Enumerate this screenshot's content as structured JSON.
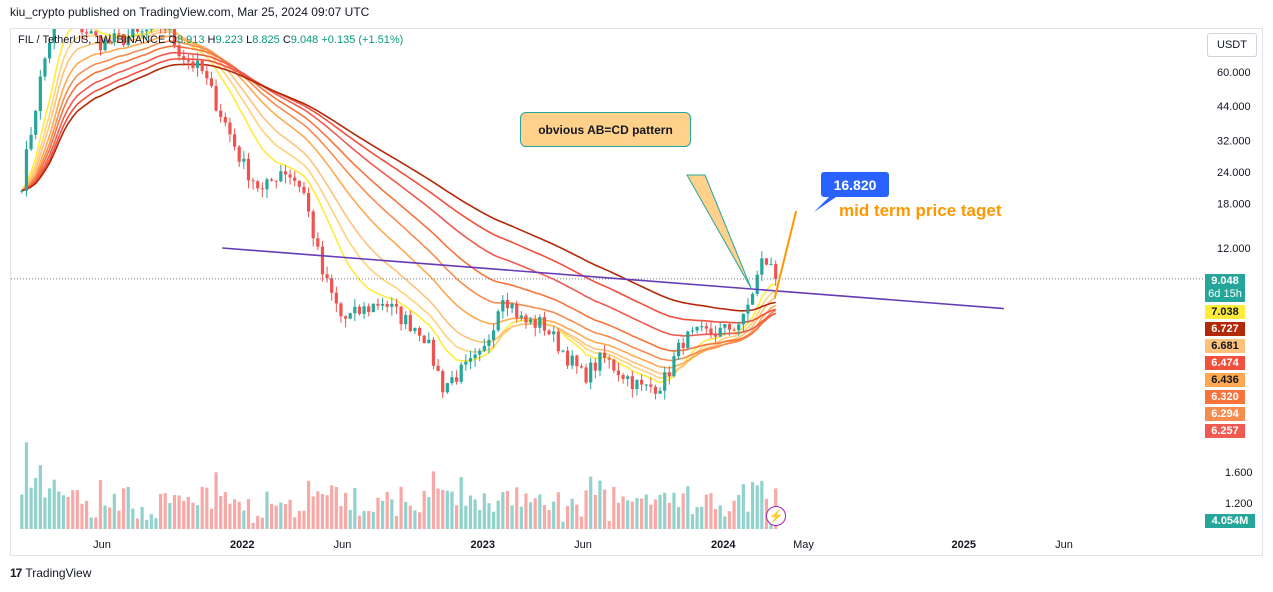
{
  "header": {
    "published_by": "kiu_crypto published on TradingView.com, Mar 25, 2024 09:07 UTC"
  },
  "legend": {
    "symbol": "FIL / TetherUS, 1W, BINANCE",
    "o_label": "O",
    "o": "8.913",
    "h_label": "H",
    "h": "9.223",
    "l_label": "L",
    "l": "8.825",
    "c_label": "C",
    "c": "9.048",
    "change": "+0.135 (+1.51%)"
  },
  "currency": "USDT",
  "annotations": {
    "callout": "obvious AB=CD pattern",
    "target_value": "16.820",
    "target_label": "mid term price taget"
  },
  "footer": {
    "logo": "TradingView"
  },
  "price_tags": [
    {
      "label": "9.048",
      "sub": "6d 15h",
      "color": "#26a69a",
      "text": "#ffffff"
    },
    {
      "label": "7.038",
      "color": "#ffeb3b",
      "text": "#131722"
    },
    {
      "label": "6.727",
      "color": "#b22808",
      "text": "#ffffff"
    },
    {
      "label": "6.681",
      "color": "#ffc27a",
      "text": "#131722"
    },
    {
      "label": "6.474",
      "color": "#f0503c",
      "text": "#ffffff"
    },
    {
      "label": "6.436",
      "color": "#ffa850",
      "text": "#131722"
    },
    {
      "label": "6.320",
      "color": "#f6743c",
      "text": "#ffffff"
    },
    {
      "label": "6.294",
      "color": "#f68c50",
      "text": "#ffffff"
    },
    {
      "label": "6.257",
      "color": "#f05a50",
      "text": "#ffffff"
    }
  ],
  "volume_label": "4.054M",
  "chart_data": {
    "type": "candlestick",
    "y_scale": "log",
    "y_ticks": [
      60,
      44,
      32,
      24,
      18,
      12
    ],
    "y_tick_labels": [
      "60.000",
      "44.000",
      "32.000",
      "24.000",
      "18.000",
      "12.000"
    ],
    "volume_ticks": [
      1.6,
      1.2
    ],
    "volume_tick_labels": [
      "1.600",
      "1.200"
    ],
    "x_tick_labels": [
      "Jun",
      "2022",
      "Jun",
      "2023",
      "Jun",
      "2024",
      "May",
      "2025",
      "Jun"
    ],
    "x_tick_dates": [
      "2021-06",
      "2022-01",
      "2022-06",
      "2023-01",
      "2023-06",
      "2024-01",
      "2024-05",
      "2025-01",
      "2025-06"
    ],
    "close_path": [
      [
        "2021-02",
        22
      ],
      [
        "2021-03",
        60
      ],
      [
        "2021-04",
        130
      ],
      [
        "2021-05",
        90
      ],
      [
        "2021-06",
        78
      ],
      [
        "2021-08",
        85
      ],
      [
        "2021-09",
        95
      ],
      [
        "2021-10",
        70
      ],
      [
        "2021-11",
        60
      ],
      [
        "2021-12",
        40
      ],
      [
        "2022-01",
        26
      ],
      [
        "2022-02",
        20
      ],
      [
        "2022-03",
        25
      ],
      [
        "2022-04",
        21
      ],
      [
        "2022-05",
        9.5
      ],
      [
        "2022-06",
        6.2
      ],
      [
        "2022-08",
        7.4
      ],
      [
        "2022-09",
        6.3
      ],
      [
        "2022-10",
        5.6
      ],
      [
        "2022-11",
        3.4
      ],
      [
        "2023-01",
        4.5
      ],
      [
        "2023-02",
        8.0
      ],
      [
        "2023-03",
        6.1
      ],
      [
        "2023-04",
        6.0
      ],
      [
        "2023-05",
        4.7
      ],
      [
        "2023-06",
        3.7
      ],
      [
        "2023-07",
        4.4
      ],
      [
        "2023-08",
        3.8
      ],
      [
        "2023-09",
        3.3
      ],
      [
        "2023-10",
        3.5
      ],
      [
        "2023-11",
        5.2
      ],
      [
        "2023-12",
        5.5
      ],
      [
        "2024-01",
        5.6
      ],
      [
        "2024-02",
        6.2
      ],
      [
        "2024-03",
        11.0
      ],
      [
        "2024-03-25",
        9.048
      ]
    ],
    "trendline": {
      "from": [
        "2021-12",
        12.0
      ],
      "to": [
        "2025-03",
        6.9
      ]
    },
    "projection": {
      "from": [
        "2024-03-18",
        7.6
      ],
      "to": [
        "2024-04-20",
        16.82
      ]
    },
    "last_close": 9.048
  }
}
